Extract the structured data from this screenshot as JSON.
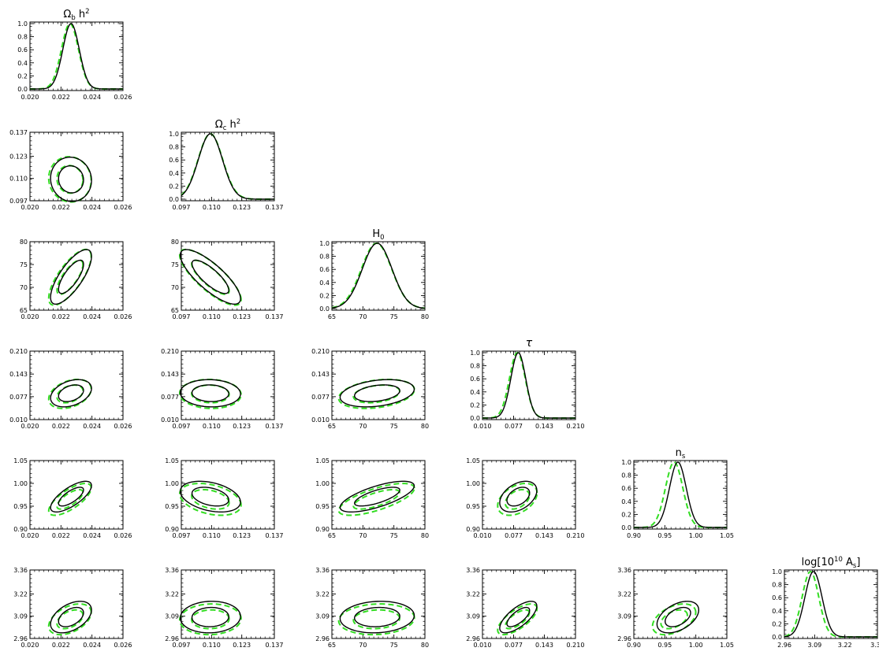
{
  "chart_data": {
    "type": "triangle-plot",
    "description_of_lines": {
      "solid_color": "#000000",
      "dashed_color": "#33dd22"
    },
    "parameters": [
      {
        "key": "omega_b",
        "title": {
          "base": "Ω",
          "sub": "b",
          "mid": " h",
          "sup": "2",
          "post": ""
        },
        "range": [
          0.02,
          0.026
        ],
        "ticks": [
          0.02,
          0.022,
          0.024,
          0.026
        ],
        "tick_labels": [
          "0.020",
          "0.022",
          "0.024",
          "0.026"
        ],
        "mean": 0.02265,
        "sigma": 0.00053,
        "mean_alt": 0.02258,
        "sigma_alt": 0.00055
      },
      {
        "key": "omega_c",
        "title": {
          "base": "Ω",
          "sub": "c",
          "mid": " h",
          "sup": "2",
          "post": ""
        },
        "range": [
          0.097,
          0.137
        ],
        "ticks": [
          0.097,
          0.11,
          0.123,
          0.137
        ],
        "tick_labels": [
          "0.097",
          "0.110",
          "0.123",
          "0.137"
        ],
        "mean": 0.1095,
        "sigma": 0.0052,
        "mean_alt": 0.1095,
        "sigma_alt": 0.0053
      },
      {
        "key": "h0",
        "title": {
          "base": "H",
          "sub": "0",
          "mid": "",
          "sup": "",
          "post": ""
        },
        "range": [
          65,
          80
        ],
        "ticks": [
          65,
          70,
          75,
          80
        ],
        "tick_labels": [
          "65",
          "70",
          "75",
          "80"
        ],
        "mean": 72.3,
        "sigma": 2.4,
        "mean_alt": 72.2,
        "sigma_alt": 2.45
      },
      {
        "key": "tau",
        "title": {
          "base": "τ",
          "sub": "",
          "mid": "",
          "sup": "",
          "post": ""
        },
        "range": [
          0.01,
          0.21
        ],
        "ticks": [
          0.01,
          0.077,
          0.143,
          0.21
        ],
        "tick_labels": [
          "0.010",
          "0.077",
          "0.143",
          "0.210"
        ],
        "mean": 0.087,
        "sigma": 0.016,
        "mean_alt": 0.085,
        "sigma_alt": 0.017
      },
      {
        "key": "ns",
        "title": {
          "base": "n",
          "sub": "s",
          "mid": "",
          "sup": "",
          "post": ""
        },
        "range": [
          0.9,
          1.05
        ],
        "ticks": [
          0.9,
          0.95,
          1.0,
          1.05
        ],
        "tick_labels": [
          "0.90",
          "0.95",
          "1.00",
          "1.05"
        ],
        "mean": 0.971,
        "sigma": 0.0135,
        "mean_alt": 0.965,
        "sigma_alt": 0.014
      },
      {
        "key": "logA",
        "title": {
          "base": "log[10",
          "sub": "",
          "mid": "",
          "sup": "10",
          "post": " A",
          "post_sub": "s",
          "close": "]"
        },
        "range": [
          2.96,
          3.36
        ],
        "ticks": [
          2.96,
          3.09,
          3.22,
          3.36
        ],
        "tick_labels": [
          "2.96",
          "3.09",
          "3.22",
          "3.36"
        ],
        "mean": 3.085,
        "sigma": 0.037,
        "mean_alt": 3.072,
        "sigma_alt": 0.036
      }
    ],
    "diagonal_ylim": [
      0,
      1.0
    ],
    "diagonal_ticks": [
      "0.0",
      "0.2",
      "0.4",
      "0.6",
      "0.8",
      "1.0"
    ],
    "correlations": {
      "1-0": -0.05,
      "2-0": 0.75,
      "2-1": -0.8,
      "3-0": 0.35,
      "3-1": -0.05,
      "3-2": 0.3,
      "4-0": 0.72,
      "4-1": -0.35,
      "4-2": 0.7,
      "4-3": 0.4,
      "5-0": 0.45,
      "5-1": 0.05,
      "5-2": 0.1,
      "5-3": 0.7,
      "5-4": 0.45
    }
  }
}
